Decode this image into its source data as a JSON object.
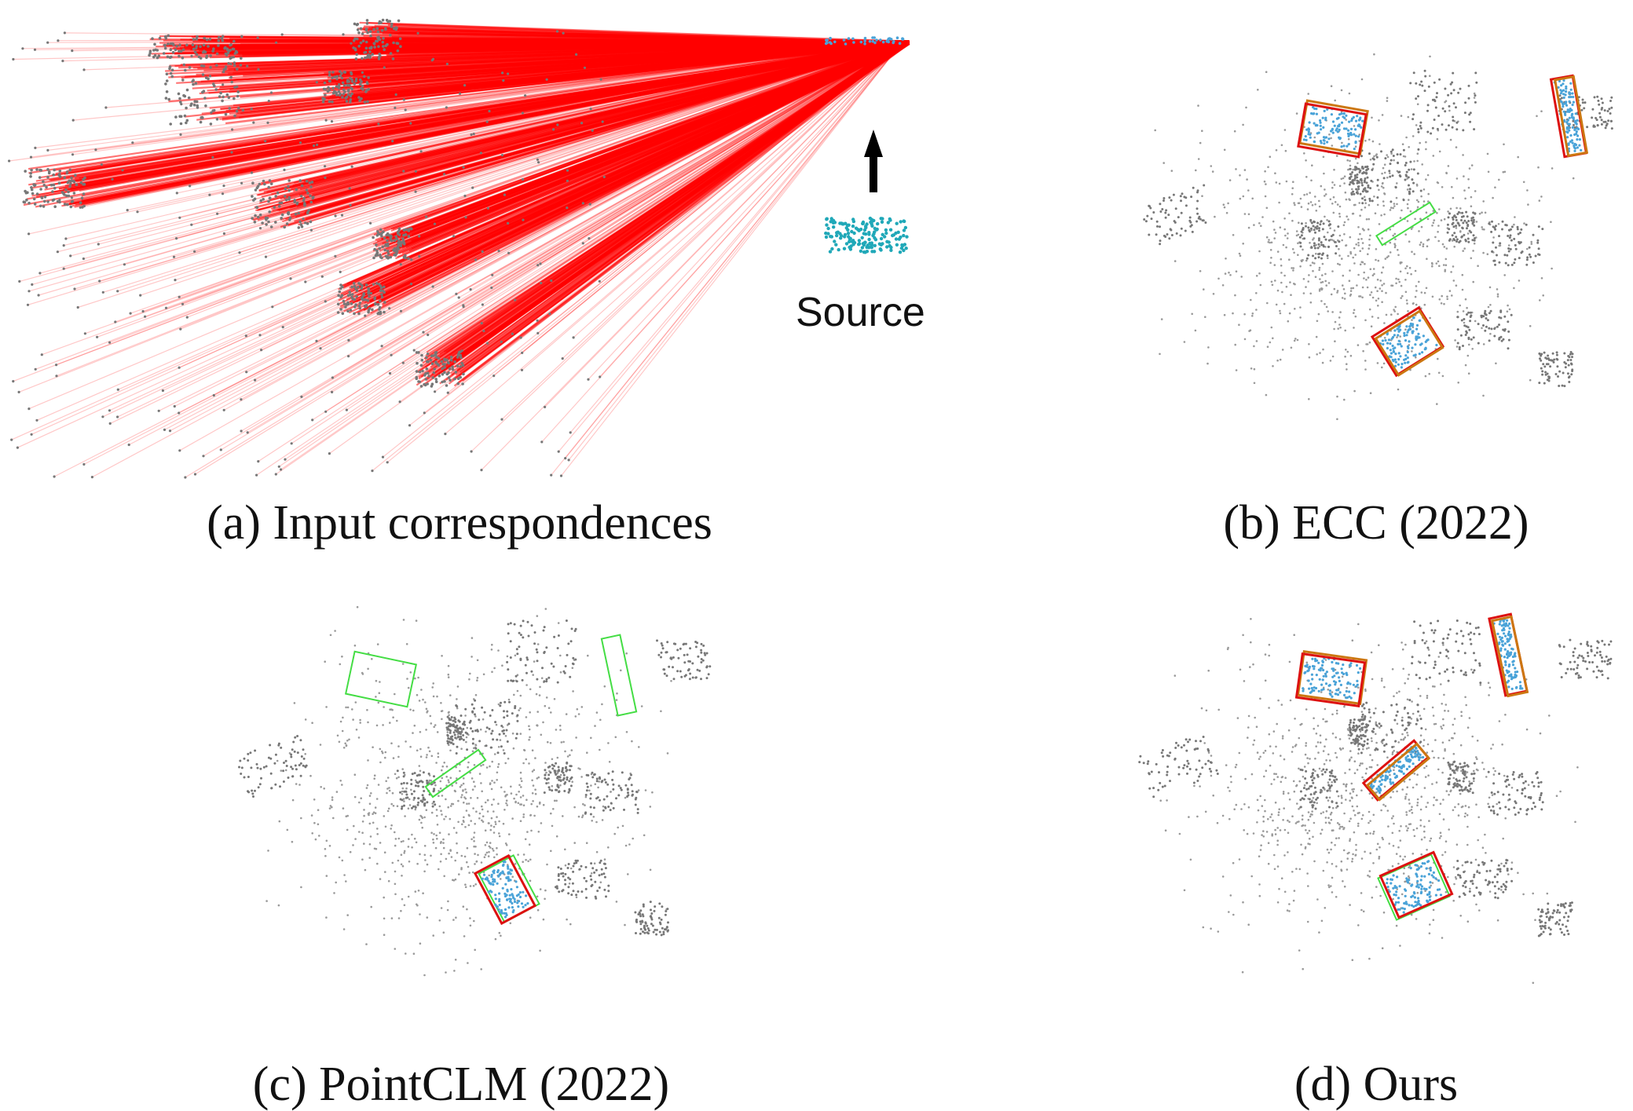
{
  "captions": {
    "a": "(a) Input correspondences",
    "b": "(b) ECC (2022)",
    "c": "(c) PointCLM (2022)",
    "d": "(d) Ours"
  },
  "source_label": "Source",
  "colors": {
    "correspondence_lines": "#ff0000",
    "target_points": "#777777",
    "source_points": "#20a8b8",
    "inlier_points": "#4aa3d8",
    "box_ground_truth": "#44dd44",
    "box_prediction": "#dd1111",
    "box_orange": "#cc7711",
    "arrow": "#000000"
  },
  "icons": {
    "arrow": "up-arrow-icon"
  }
}
